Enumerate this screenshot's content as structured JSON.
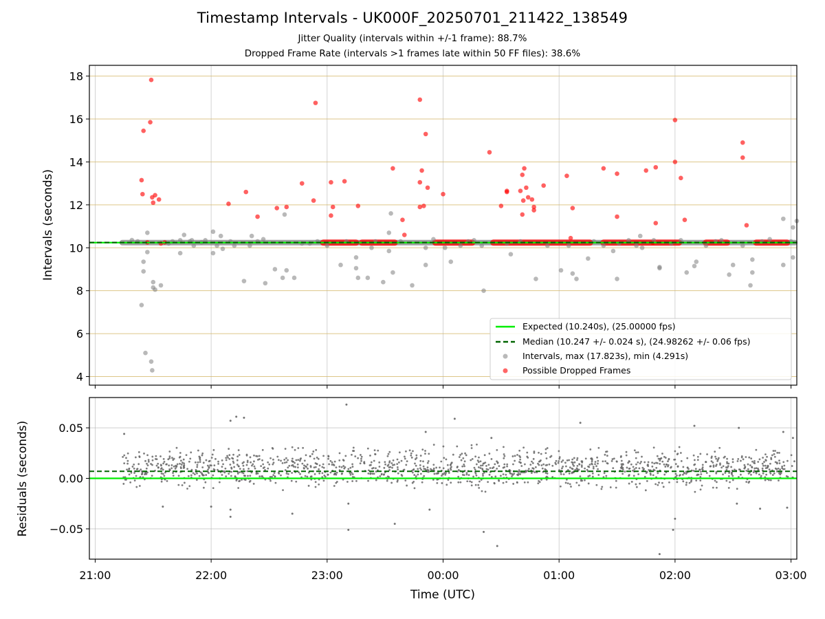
{
  "title": "Timestamp Intervals - UK000F_20250701_211422_138549",
  "subtitle_lines": [
    "Jitter Quality (intervals within +/-1 frame): 88.7%",
    "Dropped Frame Rate (intervals >1 frames late within 50 FF files): 38.6%"
  ],
  "colors": {
    "expected": "#00ee00",
    "median": "#006400",
    "intervals": "#808080",
    "dropped": "#ff0000",
    "hgrid_top": "#d4b86a",
    "grid": "#b0b0b0"
  },
  "chart_data": [
    {
      "type": "scatter",
      "ylabel": "Intervals (seconds)",
      "xlabel": "",
      "x_unit": "minutes after 21:00 UTC",
      "xlim": [
        -3,
        363
      ],
      "ylim": [
        3.6,
        18.5
      ],
      "yticks": [
        4,
        6,
        8,
        10,
        12,
        14,
        16,
        18
      ],
      "ytick_labels": [
        "4",
        "6",
        "8",
        "10",
        "12",
        "14",
        "16",
        "18"
      ],
      "grid": true,
      "legend_position": "lower right",
      "legend": [
        "Expected (10.240s), (25.00000 fps)",
        "Median (10.247 +/- 0.024 s), (24.98262 +/- 0.06 fps)",
        "Intervals, max (17.823s), min (4.291s)",
        "Possible Dropped Frames"
      ],
      "expected_line": 10.24,
      "median_line": 10.247,
      "baseline_segment": {
        "x_start": 14,
        "x_end": 362,
        "y": 10.24
      },
      "dropped_cluster_segments": [
        {
          "x_start": 118,
          "x_end": 135
        },
        {
          "x_start": 138,
          "x_end": 155
        },
        {
          "x_start": 176,
          "x_end": 195
        },
        {
          "x_start": 206,
          "x_end": 256
        },
        {
          "x_start": 263,
          "x_end": 288
        },
        {
          "x_start": 289,
          "x_end": 302
        },
        {
          "x_start": 316,
          "x_end": 327
        },
        {
          "x_start": 342,
          "x_end": 358
        }
      ],
      "series": [
        {
          "name": "Intervals, max (17.823s), min (4.291s)",
          "points": [
            [
              19,
              10.36
            ],
            [
              22,
              10.3
            ],
            [
              24,
              7.33
            ],
            [
              25,
              9.35
            ],
            [
              25,
              8.9
            ],
            [
              26,
              5.1
            ],
            [
              27,
              10.7
            ],
            [
              27,
              9.8
            ],
            [
              29,
              4.7
            ],
            [
              29.5,
              4.29
            ],
            [
              30,
              8.4
            ],
            [
              30,
              8.15
            ],
            [
              31,
              8.05
            ],
            [
              34,
              8.25
            ],
            [
              38,
              10.2
            ],
            [
              40,
              10.3
            ],
            [
              44,
              10.35
            ],
            [
              44,
              9.75
            ],
            [
              46,
              10.6
            ],
            [
              49,
              10.3
            ],
            [
              50,
              10.35
            ],
            [
              51,
              10.1
            ],
            [
              55,
              10.25
            ],
            [
              57,
              10.35
            ],
            [
              61,
              9.75
            ],
            [
              61,
              10.75
            ],
            [
              63,
              10.1
            ],
            [
              65,
              10.55
            ],
            [
              66,
              9.95
            ],
            [
              70,
              10.3
            ],
            [
              72,
              10.1
            ],
            [
              77,
              8.45
            ],
            [
              80,
              10.1
            ],
            [
              81,
              10.55
            ],
            [
              84,
              10.3
            ],
            [
              87,
              10.4
            ],
            [
              88,
              8.35
            ],
            [
              93,
              9.0
            ],
            [
              97,
              8.6
            ],
            [
              98,
              11.55
            ],
            [
              99,
              8.95
            ],
            [
              103,
              8.6
            ],
            [
              107,
              10.2
            ],
            [
              111,
              10.2
            ],
            [
              115,
              10.3
            ],
            [
              120,
              10.1
            ],
            [
              127,
              9.2
            ],
            [
              130,
              10.3
            ],
            [
              135,
              9.55
            ],
            [
              135,
              9.05
            ],
            [
              136,
              8.6
            ],
            [
              141,
              8.6
            ],
            [
              143,
              10.0
            ],
            [
              145,
              10.3
            ],
            [
              149,
              8.4
            ],
            [
              152,
              9.85
            ],
            [
              152,
              10.7
            ],
            [
              153,
              11.6
            ],
            [
              154,
              8.85
            ],
            [
              158,
              10.3
            ],
            [
              164,
              8.25
            ],
            [
              171,
              9.2
            ],
            [
              171,
              10.0
            ],
            [
              175,
              10.4
            ],
            [
              181,
              10.0
            ],
            [
              184,
              9.35
            ],
            [
              189,
              10.1
            ],
            [
              193,
              10.3
            ],
            [
              196,
              10.35
            ],
            [
              200,
              10.1
            ],
            [
              201,
              8.0
            ],
            [
              213,
              10.2
            ],
            [
              215,
              9.7
            ],
            [
              220,
              10.3
            ],
            [
              228,
              8.55
            ],
            [
              234,
              10.1
            ],
            [
              241,
              8.95
            ],
            [
              245,
              10.1
            ],
            [
              247,
              8.8
            ],
            [
              249,
              8.55
            ],
            [
              255,
              9.5
            ],
            [
              258,
              10.3
            ],
            [
              263,
              10.1
            ],
            [
              268,
              9.85
            ],
            [
              270,
              8.55
            ],
            [
              271,
              10.2
            ],
            [
              276,
              10.35
            ],
            [
              280,
              10.1
            ],
            [
              282,
              10.55
            ],
            [
              283,
              10.0
            ],
            [
              289,
              10.35
            ],
            [
              292,
              9.05
            ],
            [
              292,
              9.1
            ],
            [
              298,
              10.2
            ],
            [
              303,
              10.35
            ],
            [
              306,
              8.85
            ],
            [
              310,
              9.15
            ],
            [
              311,
              9.35
            ],
            [
              316,
              10.1
            ],
            [
              321,
              10.3
            ],
            [
              324,
              10.35
            ],
            [
              328,
              8.75
            ],
            [
              330,
              9.2
            ],
            [
              335,
              10.1
            ],
            [
              339,
              8.25
            ],
            [
              340,
              8.85
            ],
            [
              340,
              9.45
            ],
            [
              345,
              10.3
            ],
            [
              349,
              10.4
            ],
            [
              356,
              9.2
            ],
            [
              356,
              11.35
            ],
            [
              360,
              10.3
            ],
            [
              361,
              9.55
            ],
            [
              361,
              10.95
            ],
            [
              363,
              11.25
            ]
          ]
        },
        {
          "name": "Possible Dropped Frames",
          "points": [
            [
              24,
              13.15
            ],
            [
              24.5,
              12.5
            ],
            [
              25,
              15.45
            ],
            [
              27,
              10.25
            ],
            [
              28.5,
              15.85
            ],
            [
              29,
              17.82
            ],
            [
              29.5,
              12.35
            ],
            [
              30,
              12.1
            ],
            [
              31,
              12.45
            ],
            [
              33,
              12.25
            ],
            [
              34,
              10.2
            ],
            [
              36,
              10.25
            ],
            [
              69,
              12.05
            ],
            [
              78,
              12.6
            ],
            [
              84,
              11.45
            ],
            [
              94,
              11.85
            ],
            [
              99,
              11.9
            ],
            [
              107,
              13.0
            ],
            [
              113,
              12.2
            ],
            [
              114,
              16.75
            ],
            [
              122,
              13.05
            ],
            [
              122,
              11.5
            ],
            [
              123,
              11.9
            ],
            [
              129,
              13.1
            ],
            [
              136,
              11.95
            ],
            [
              154,
              13.7
            ],
            [
              159,
              11.3
            ],
            [
              160,
              10.6
            ],
            [
              168,
              11.9
            ],
            [
              168,
              16.9
            ],
            [
              168,
              13.05
            ],
            [
              169,
              13.6
            ],
            [
              170,
              11.95
            ],
            [
              171,
              15.3
            ],
            [
              172,
              12.8
            ],
            [
              180,
              12.5
            ],
            [
              204,
              14.45
            ],
            [
              210,
              11.95
            ],
            [
              213,
              12.65
            ],
            [
              213,
              12.6
            ],
            [
              220,
              12.65
            ],
            [
              221,
              13.4
            ],
            [
              221,
              11.55
            ],
            [
              221.5,
              12.2
            ],
            [
              222,
              13.7
            ],
            [
              223,
              12.8
            ],
            [
              224,
              12.35
            ],
            [
              226,
              12.25
            ],
            [
              227,
              11.75
            ],
            [
              227,
              11.9
            ],
            [
              232,
              12.9
            ],
            [
              244,
              13.35
            ],
            [
              246,
              10.45
            ],
            [
              247,
              11.85
            ],
            [
              263,
              13.7
            ],
            [
              270,
              11.45
            ],
            [
              270,
              13.45
            ],
            [
              285,
              13.6
            ],
            [
              290,
              13.75
            ],
            [
              290,
              11.15
            ],
            [
              300,
              15.95
            ],
            [
              300,
              14.0
            ],
            [
              303,
              13.25
            ],
            [
              305,
              11.3
            ],
            [
              335,
              14.2
            ],
            [
              335,
              14.9
            ],
            [
              337,
              11.05
            ]
          ]
        }
      ]
    },
    {
      "type": "scatter",
      "ylabel": "Residuals (seconds)",
      "xlabel": "Time (UTC)",
      "xlim": [
        -3,
        363
      ],
      "ylim": [
        -0.08,
        0.08
      ],
      "yticks": [
        -0.05,
        0.0,
        0.05
      ],
      "ytick_labels": [
        "−0.05",
        "0.00",
        "0.05"
      ],
      "xticks": [
        0,
        60,
        120,
        180,
        240,
        300,
        360
      ],
      "xtick_labels": [
        "21:00",
        "22:00",
        "23:00",
        "00:00",
        "01:00",
        "02:00",
        "03:00"
      ],
      "grid": true,
      "expected_line": 0.0,
      "median_line": 0.007,
      "residual_band": {
        "x_start": 14,
        "x_end": 362,
        "center": 0.01,
        "spread": 0.02
      },
      "series": [
        {
          "name": "Residuals",
          "points": [
            [
              15,
              0.044
            ],
            [
              73,
              0.061
            ],
            [
              70,
              0.057
            ],
            [
              77,
              0.06
            ],
            [
              130,
              0.073
            ],
            [
              186,
              0.059
            ],
            [
              251,
              0.055
            ],
            [
              171,
              0.046
            ],
            [
              205,
              0.04
            ],
            [
              310,
              0.052
            ],
            [
              333,
              0.05
            ],
            [
              356,
              0.046
            ],
            [
              361,
              0.04
            ],
            [
              35,
              -0.028
            ],
            [
              60,
              -0.028
            ],
            [
              70,
              -0.031
            ],
            [
              70,
              -0.038
            ],
            [
              102,
              -0.035
            ],
            [
              131,
              -0.025
            ],
            [
              131,
              -0.051
            ],
            [
              155,
              -0.045
            ],
            [
              173,
              -0.031
            ],
            [
              201,
              -0.053
            ],
            [
              208,
              -0.067
            ],
            [
              292,
              -0.075
            ],
            [
              300,
              -0.04
            ],
            [
              299,
              -0.051
            ],
            [
              332,
              -0.025
            ],
            [
              344,
              -0.03
            ],
            [
              358,
              -0.029
            ]
          ]
        }
      ]
    }
  ]
}
